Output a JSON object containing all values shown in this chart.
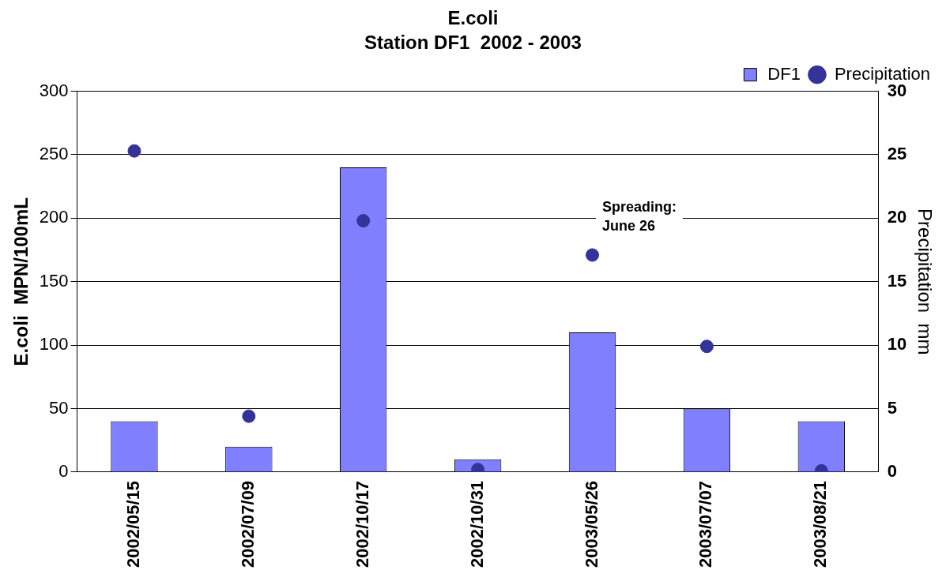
{
  "chart_data": {
    "type": "bar",
    "title": "E.coli",
    "subtitle": "Station DF1  2002 - 2003",
    "ylabel": "E.coli  MPN/100mL",
    "y2label": "Precipitation  mm",
    "categories": [
      "2002/05/15",
      "2002/07/09",
      "2002/10/17",
      "2002/10/31",
      "2003/05/26",
      "2003/07/07",
      "2003/08/21"
    ],
    "series": [
      {
        "name": "DF1",
        "color": "#8080ff",
        "values": [
          40,
          20,
          240,
          10,
          110,
          50,
          40
        ]
      },
      {
        "name": "Precipitation",
        "type": "scatter",
        "axis": "y2",
        "color": "#333399",
        "marker": "circle",
        "values": [
          25.3,
          4.4,
          19.8,
          0.2,
          17.1,
          9.9,
          0.1
        ]
      }
    ],
    "ylim": [
      0,
      300
    ],
    "yticks": [
      0,
      50,
      100,
      150,
      200,
      250,
      300
    ],
    "y2lim": [
      0,
      30
    ],
    "y2ticks": [
      0,
      5,
      10,
      15,
      20,
      25,
      30
    ],
    "grid": "y",
    "legend": "top right",
    "annotations": [
      "Spreading:\nJune 26"
    ]
  }
}
